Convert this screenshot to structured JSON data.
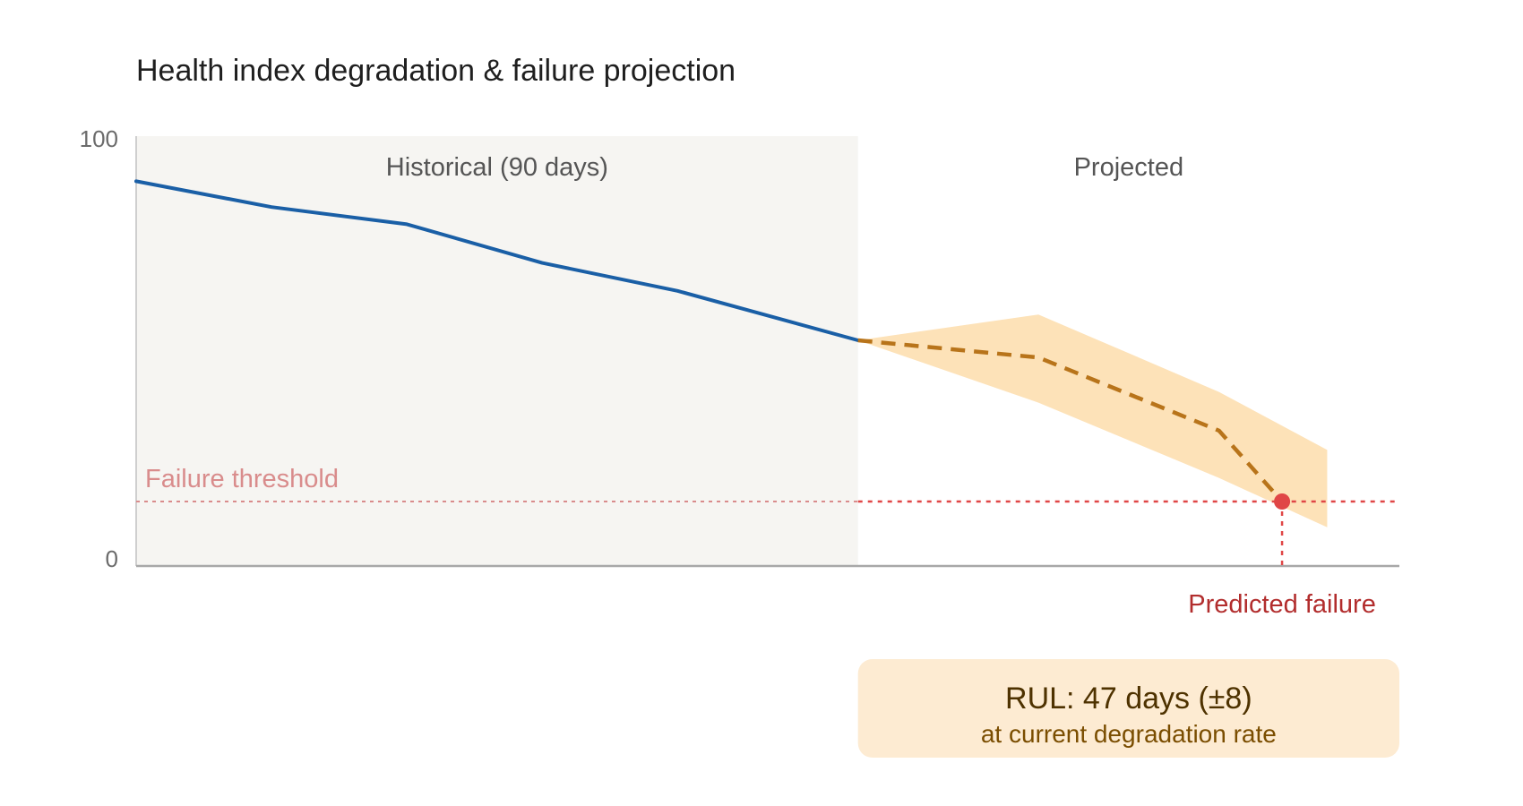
{
  "chart_data": {
    "type": "line",
    "title": "Health index degradation & failure projection",
    "xlabel": "",
    "ylabel": "",
    "ylim": [
      0,
      100
    ],
    "y_ticks": [
      "100",
      "0"
    ],
    "x_axis_labels_shown": false,
    "grid": false,
    "regions": {
      "historical_label": "Historical (90 days)",
      "projected_label": "Projected"
    },
    "series": [
      {
        "style": "solid",
        "color": "#1a5fa6",
        "x": [
          0,
          15,
          30,
          45,
          60,
          80
        ],
        "values": [
          89.5,
          83.5,
          79.5,
          70.5,
          64,
          52.5
        ]
      },
      {
        "style": "dashed",
        "color": "#b8741a",
        "x": [
          80,
          100,
          120,
          127
        ],
        "values": [
          52.5,
          48.5,
          31.5,
          15
        ]
      }
    ],
    "confidence_band": {
      "color": "#fde2b8",
      "x": [
        80,
        100,
        120,
        132
      ],
      "upper": [
        52.5,
        58.5,
        40.5,
        27
      ],
      "lower": [
        52.5,
        38,
        20.5,
        9
      ]
    },
    "threshold": {
      "label": "Failure threshold",
      "value": 15,
      "color": "#e04646",
      "label_color": "#d98c8c"
    },
    "failure_point": {
      "label": "Predicted failure",
      "x": 127,
      "value": 15,
      "color": "#e04646",
      "label_color": "#b22d2d"
    },
    "x_domain": [
      0,
      140
    ]
  },
  "rul_box": {
    "title": "RUL: 47 days (±8)",
    "subtitle": "at current degradation rate",
    "background": "#fdebd2"
  }
}
